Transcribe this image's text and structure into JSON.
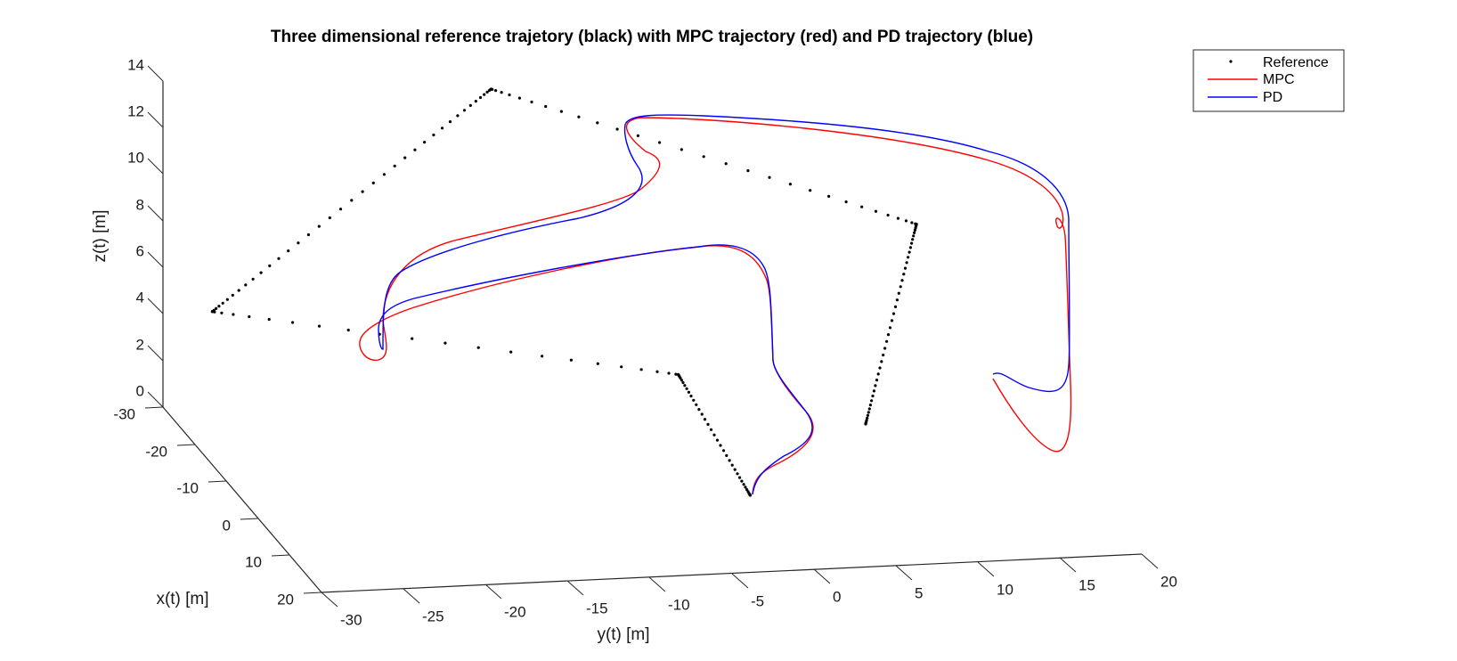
{
  "chart_data": {
    "type": "line",
    "projection": "3d",
    "title": "Three dimensional reference trajetory (black) with MPC trajectory (red) and PD trajectory (blue)",
    "xlabel": "x(t) [m]",
    "ylabel": "y(t) [m]",
    "zlabel": "z(t) [m]",
    "xlim": [
      -30,
      20
    ],
    "ylim": [
      -30,
      20
    ],
    "zlim": [
      0,
      14
    ],
    "x_ticks": [
      "-30",
      "-20",
      "-10",
      "0",
      "10",
      "20"
    ],
    "y_ticks": [
      "-30",
      "-25",
      "-20",
      "-15",
      "-10",
      "-5",
      "0",
      "5",
      "10",
      "15",
      "20"
    ],
    "z_ticks": [
      "0",
      "2",
      "4",
      "6",
      "8",
      "10",
      "12",
      "14"
    ],
    "grid": false,
    "legend_position": "top-right",
    "legend": [
      {
        "label": "Reference",
        "marker": "dot",
        "color": "#000000"
      },
      {
        "label": "MPC",
        "marker": "line",
        "color": "#ff0000"
      },
      {
        "label": "PD",
        "marker": "line",
        "color": "#0000ff"
      }
    ],
    "waypoints": [
      {
        "x": 0,
        "y": 0,
        "z": 0
      },
      {
        "x": -2,
        "y": -4,
        "z": 5
      },
      {
        "x": -30,
        "y": -27,
        "z": 4
      },
      {
        "x": -30,
        "y": -10,
        "z": 13
      },
      {
        "x": -20,
        "y": 14,
        "z": 8
      },
      {
        "x": -5,
        "y": 8,
        "z": 2
      }
    ],
    "series": [
      {
        "name": "Reference",
        "color": "#000000",
        "style": "dots"
      },
      {
        "name": "MPC",
        "color": "#ff0000",
        "style": "line"
      },
      {
        "name": "PD",
        "color": "#0000ff",
        "style": "line"
      }
    ]
  }
}
